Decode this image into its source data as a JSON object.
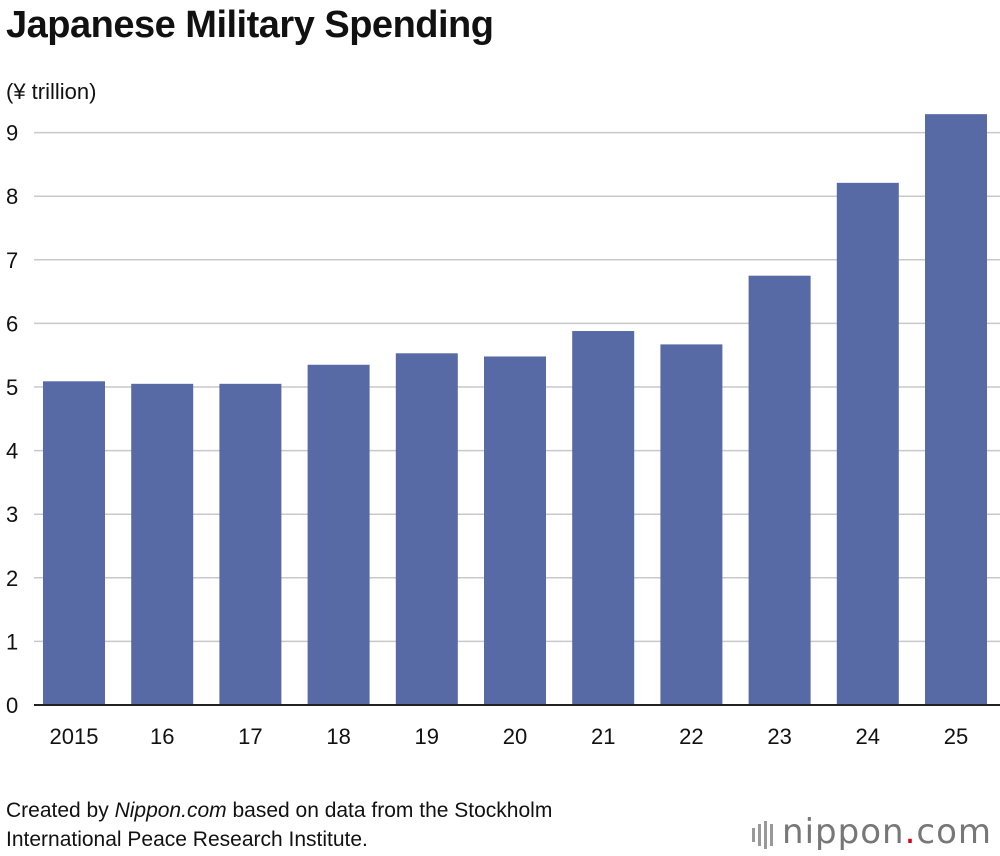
{
  "title": "Japanese Military Spending",
  "source": {
    "prefix": "Created by ",
    "site": "Nippon.com",
    "suffix": " based on data from the Stockholm",
    "line2": "International Peace Research Institute."
  },
  "logo": {
    "name": "nippon",
    "dot": ".",
    "tld": "com"
  },
  "colors": {
    "bar": "#586aa6",
    "grid": "#c8c8c8",
    "axis": "#222222"
  },
  "chart_data": {
    "type": "bar",
    "title": "Japanese Military Spending",
    "ylabel": "(¥ trillion)",
    "xlabel": "",
    "categories": [
      "2015",
      "16",
      "17",
      "18",
      "19",
      "20",
      "21",
      "22",
      "23",
      "24",
      "25"
    ],
    "values": [
      5.09,
      5.05,
      5.05,
      5.35,
      5.53,
      5.48,
      5.88,
      5.67,
      6.75,
      8.21,
      9.29
    ],
    "yticks": [
      "0",
      "1",
      "2",
      "3",
      "4",
      "5",
      "6",
      "7",
      "8",
      "9"
    ],
    "ylim": [
      0,
      9.3
    ],
    "grid": true,
    "legend": "none"
  }
}
